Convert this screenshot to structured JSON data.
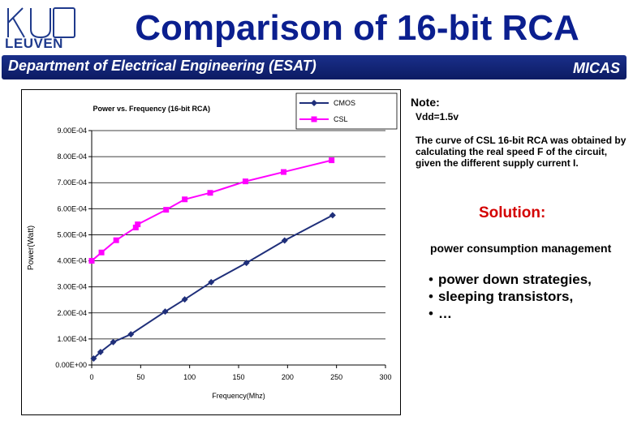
{
  "header": {
    "logo_text": "LEUVEN",
    "title": "Comparison of 16-bit RCA",
    "department": "Department of Electrical Engineering (ESAT)",
    "group": "MICAS"
  },
  "notes": {
    "note_label": "Note:",
    "vdd": "Vdd=1.5v",
    "csl_explanation": "The curve of CSL 16-bit RCA was obtained by calculating the real speed F of the circuit, given the different supply current I.",
    "solution_label": "Solution:",
    "power_management": "power consumption management",
    "bullets": [
      "power down strategies,",
      "sleeping transistors,",
      "…"
    ],
    "bullet_symbol": "•"
  },
  "colors": {
    "title": "#0b1f8f",
    "header_bar": "#1a2f8a",
    "solution": "#d40000",
    "cmos": "#1f2f7a",
    "csl": "#ff00ff"
  },
  "chart_data": {
    "type": "line",
    "title": "Power vs. Frequency (16-bit RCA)",
    "xlabel": "Frequency(Mhz)",
    "ylabel": "Power(Watt)",
    "xlim": [
      0,
      300
    ],
    "ylim": [
      0,
      0.0009
    ],
    "x_ticks": [
      0,
      50,
      100,
      150,
      200,
      250,
      300
    ],
    "x_tick_labels": [
      "0",
      "50",
      "100",
      "150",
      "200",
      "250",
      "300"
    ],
    "y_ticks": [
      0,
      0.0001,
      0.0002,
      0.0003,
      0.0004,
      0.0005,
      0.0006,
      0.0007,
      0.0008,
      0.0009
    ],
    "y_tick_labels": [
      "0.00E+00",
      "1.00E-04",
      "2.00E-04",
      "3.00E-04",
      "4.00E-04",
      "5.00E-04",
      "6.00E-04",
      "7.00E-04",
      "8.00E-04",
      "9.00E-04"
    ],
    "grid": "horizontal",
    "legend_position": "top-right",
    "series": [
      {
        "name": "CMOS",
        "color": "#1f2f7a",
        "marker": "diamond",
        "points": [
          [
            2,
            2.5e-05
          ],
          [
            9,
            5e-05
          ],
          [
            22,
            8.8e-05
          ],
          [
            40,
            0.000118
          ],
          [
            75,
            0.000205
          ],
          [
            95,
            0.000252
          ],
          [
            122,
            0.000318
          ],
          [
            158,
            0.000392
          ],
          [
            197,
            0.000478
          ],
          [
            246,
            0.000575
          ]
        ]
      },
      {
        "name": "CSL",
        "color": "#ff00ff",
        "marker": "square",
        "points": [
          [
            0,
            0.0004
          ],
          [
            10,
            0.000432
          ],
          [
            25,
            0.000479
          ],
          [
            45,
            0.000528
          ],
          [
            47,
            0.00054
          ],
          [
            76,
            0.000596
          ],
          [
            95,
            0.000636
          ],
          [
            121,
            0.000661
          ],
          [
            157,
            0.000705
          ],
          [
            196,
            0.000741
          ],
          [
            245,
            0.000786
          ]
        ]
      }
    ]
  }
}
